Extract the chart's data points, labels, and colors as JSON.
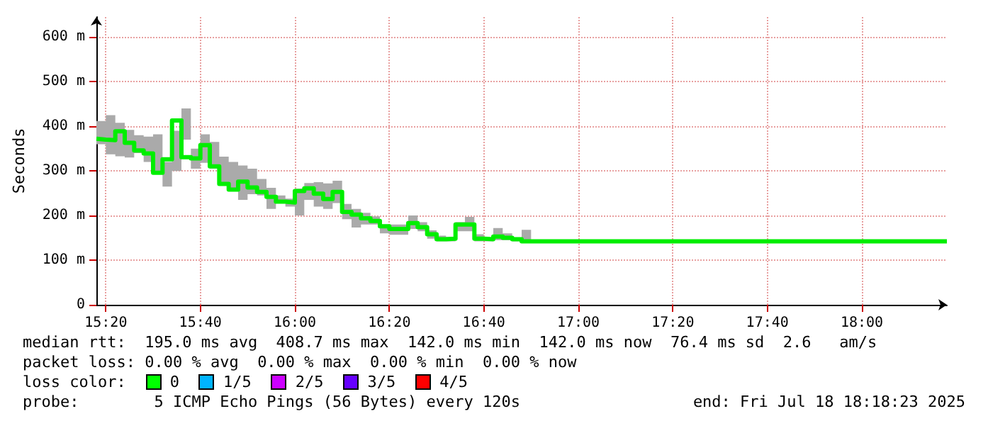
{
  "chart_data": {
    "type": "step",
    "ylabel": "Seconds",
    "xlim": [
      15.3,
      18.3
    ],
    "xticks": [
      {
        "value": 15.3333,
        "label": "15:20"
      },
      {
        "value": 15.6667,
        "label": "15:40"
      },
      {
        "value": 16,
        "label": "16:00"
      },
      {
        "value": 16.3333,
        "label": "16:20"
      },
      {
        "value": 16.6667,
        "label": "16:40"
      },
      {
        "value": 17,
        "label": "17:00"
      },
      {
        "value": 17.3333,
        "label": "17:20"
      },
      {
        "value": 17.6667,
        "label": "17:40"
      },
      {
        "value": 18,
        "label": "18:00"
      }
    ],
    "ylim": [
      0,
      645
    ],
    "yticks": [
      {
        "value": 0,
        "label": "0"
      },
      {
        "value": 100,
        "label": "100 m"
      },
      {
        "value": 200,
        "label": "200 m"
      },
      {
        "value": 300,
        "label": "300 m"
      },
      {
        "value": 400,
        "label": "400 m"
      },
      {
        "value": 500,
        "label": "500 m"
      },
      {
        "value": 600,
        "label": "600 m"
      }
    ],
    "grid": true,
    "series": [
      {
        "color": "#00ee00",
        "x": [
          15.3,
          15.3333,
          15.3667,
          15.4,
          15.4333,
          15.4667,
          15.5,
          15.5333,
          15.5667,
          15.6,
          15.6333,
          15.6667,
          15.7,
          15.7333,
          15.7667,
          15.8,
          15.8333,
          15.8667,
          15.9,
          15.9333,
          15.9667,
          16,
          16.0333,
          16.0667,
          16.1,
          16.1333,
          16.1667,
          16.2,
          16.2333,
          16.2667,
          16.3,
          16.3333,
          16.3667,
          16.4,
          16.4333,
          16.4667,
          16.5,
          16.5333,
          16.5667,
          16.6,
          16.6333,
          16.6667,
          16.7,
          16.7333,
          16.7667,
          16.8,
          16.8333,
          18.3
        ],
        "values": [
          372,
          370,
          369,
          389,
          363,
          346,
          339,
          296,
          326,
          413,
          331,
          328,
          358,
          310,
          271,
          258,
          276,
          263,
          253,
          242,
          231,
          229,
          255,
          261,
          249,
          237,
          253,
          208,
          202,
          194,
          188,
          176,
          170,
          170,
          183,
          174,
          158,
          147,
          148,
          180,
          180,
          148,
          147,
          153,
          150,
          147,
          142,
          142
        ],
        "upper": [
          412,
          425,
          408,
          392,
          380,
          377,
          382,
          320,
          390,
          440,
          350,
          382,
          365,
          332,
          320,
          312,
          305,
          282,
          262,
          245,
          238,
          260,
          273,
          275,
          272,
          278,
          226,
          215,
          206,
          198,
          180,
          180,
          180,
          200,
          185,
          167,
          155,
          152,
          185,
          197,
          158,
          150,
          172,
          160,
          150,
          168,
          142,
          142
        ],
        "lower": [
          360,
          337,
          333,
          330,
          340,
          320,
          300,
          265,
          300,
          370,
          305,
          318,
          305,
          275,
          257,
          235,
          248,
          245,
          215,
          228,
          220,
          200,
          235,
          220,
          215,
          228,
          192,
          173,
          180,
          180,
          160,
          157,
          157,
          170,
          165,
          148,
          142,
          142,
          165,
          165,
          142,
          142,
          145,
          145,
          142,
          145,
          142,
          142
        ]
      }
    ],
    "annotations": [
      "median rtt:  195.0 ms avg  408.7 ms max  142.0 ms min  142.0 ms now  76.4 ms sd  2.6   am/s",
      "packet loss: 0.00 % avg  0.00 % max  0.00 % min  0.00 % now",
      "loss color:",
      "0",
      "1/5",
      "2/5",
      "3/5",
      "4/5",
      "probe:        5 ICMP Echo Pings (56 Bytes) every 120s",
      "end: Fri Jul 18 18:18:23 2025"
    ]
  }
}
